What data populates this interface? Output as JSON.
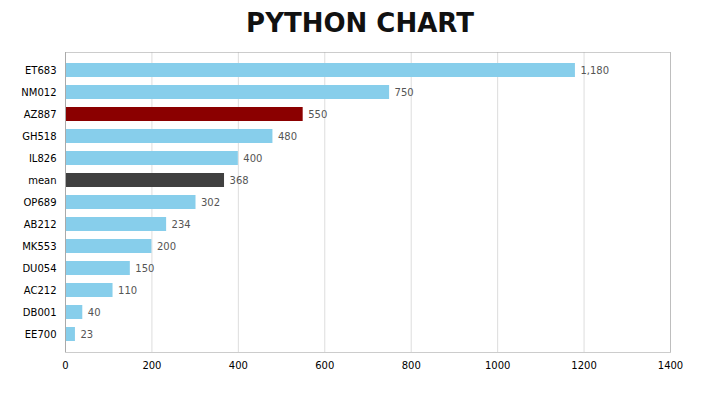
{
  "chart_data": {
    "type": "bar",
    "title": "PYTHON CHART",
    "orientation": "horizontal",
    "categories": [
      "EE700",
      "DB001",
      "AC212",
      "DU054",
      "MK553",
      "AB212",
      "OP689",
      "mean",
      "IL826",
      "GH518",
      "AZ887",
      "NM012",
      "ET683"
    ],
    "values": [
      23,
      40,
      110,
      150,
      200,
      234,
      302,
      368,
      400,
      480,
      550,
      750,
      1180
    ],
    "value_labels": [
      "23",
      "40",
      "110",
      "150",
      "200",
      "234",
      "302",
      "368",
      "400",
      "480",
      "550",
      "750",
      "1,180"
    ],
    "colors": [
      "#87CEEB",
      "#87CEEB",
      "#87CEEB",
      "#87CEEB",
      "#87CEEB",
      "#87CEEB",
      "#87CEEB",
      "#404040",
      "#87CEEB",
      "#87CEEB",
      "#8B0000",
      "#87CEEB",
      "#87CEEB"
    ],
    "xlim": [
      0,
      1400
    ],
    "xticks": [
      0,
      200,
      400,
      600,
      800,
      1000,
      1200,
      1400
    ],
    "grid": true,
    "data_labels": true
  }
}
